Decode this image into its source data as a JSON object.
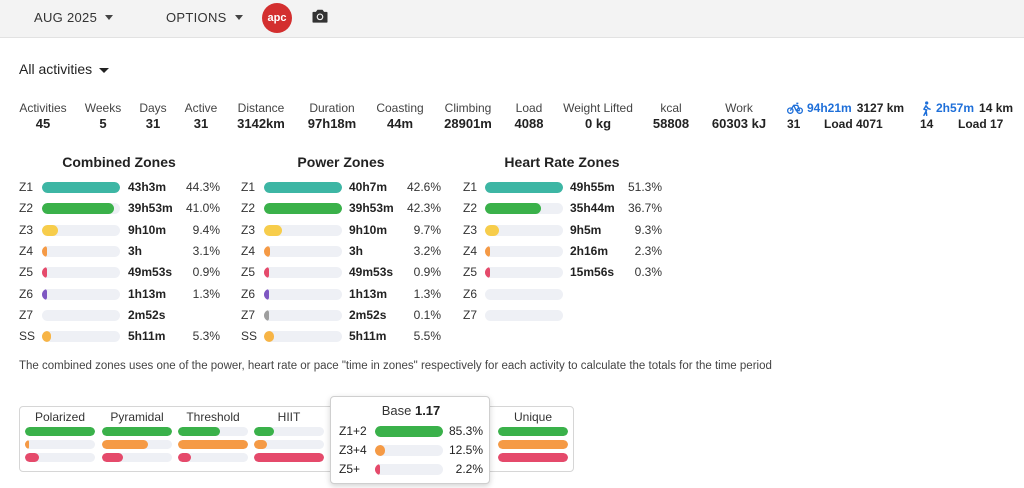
{
  "topbar": {
    "month_label": "AUG 2025",
    "options_label": "OPTIONS",
    "logo_text": "apc",
    "camera_icon": "camera-icon"
  },
  "filter": {
    "label": "All activities"
  },
  "stats": [
    {
      "label": "Activities",
      "value": "45"
    },
    {
      "label": "Weeks",
      "value": "5"
    },
    {
      "label": "Days",
      "value": "31"
    },
    {
      "label": "Active",
      "value": "31"
    },
    {
      "label": "Distance",
      "value": "3142km"
    },
    {
      "label": "Duration",
      "value": "97h18m"
    },
    {
      "label": "Coasting",
      "value": "44m"
    },
    {
      "label": "Climbing",
      "value": "28901m"
    },
    {
      "label": "Load",
      "value": "4088"
    },
    {
      "label": "Weight Lifted",
      "value": "0 kg"
    },
    {
      "label": "kcal",
      "value": "58808"
    },
    {
      "label": "Work",
      "value": "60303 kJ"
    }
  ],
  "sports": [
    {
      "icon": "bike-icon",
      "duration": "94h21m",
      "distance": "3127 km",
      "count": "31",
      "load": "Load 4071"
    },
    {
      "icon": "walk-icon",
      "duration": "2h57m",
      "distance": "14 km",
      "count": "14",
      "load": "Load 17"
    }
  ],
  "zone_colors": [
    "#3db6a4",
    "#3ab14a",
    "#f7cd4b",
    "#f59a45",
    "#e54a6b",
    "#7e57c2",
    "#9e9e9e",
    "#f7b445"
  ],
  "zones": {
    "combined": {
      "title": "Combined Zones",
      "rows": [
        {
          "zone": "Z1",
          "time": "43h3m",
          "pct": "44.3%",
          "fill": 1.0
        },
        {
          "zone": "Z2",
          "time": "39h53m",
          "pct": "41.0%",
          "fill": 0.925
        },
        {
          "zone": "Z3",
          "time": "9h10m",
          "pct": "9.4%",
          "fill": 0.21
        },
        {
          "zone": "Z4",
          "time": "3h",
          "pct": "3.1%",
          "fill": 0.07
        },
        {
          "zone": "Z5",
          "time": "49m53s",
          "pct": "0.9%",
          "fill": 0.02
        },
        {
          "zone": "Z6",
          "time": "1h13m",
          "pct": "1.3%",
          "fill": 0.03
        },
        {
          "zone": "Z7",
          "time": "2m52s",
          "pct": "",
          "fill": 0.0
        },
        {
          "zone": "SS",
          "time": "5h11m",
          "pct": "5.3%",
          "fill": 0.12
        }
      ]
    },
    "power": {
      "title": "Power Zones",
      "rows": [
        {
          "zone": "Z1",
          "time": "40h7m",
          "pct": "42.6%",
          "fill": 1.0
        },
        {
          "zone": "Z2",
          "time": "39h53m",
          "pct": "42.3%",
          "fill": 0.995
        },
        {
          "zone": "Z3",
          "time": "9h10m",
          "pct": "9.7%",
          "fill": 0.23
        },
        {
          "zone": "Z4",
          "time": "3h",
          "pct": "3.2%",
          "fill": 0.075
        },
        {
          "zone": "Z5",
          "time": "49m53s",
          "pct": "0.9%",
          "fill": 0.02
        },
        {
          "zone": "Z6",
          "time": "1h13m",
          "pct": "1.3%",
          "fill": 0.03
        },
        {
          "zone": "Z7",
          "time": "2m52s",
          "pct": "0.1%",
          "fill": 0.005
        },
        {
          "zone": "SS",
          "time": "5h11m",
          "pct": "5.5%",
          "fill": 0.13
        }
      ]
    },
    "heart": {
      "title": "Heart Rate Zones",
      "rows": [
        {
          "zone": "Z1",
          "time": "49h55m",
          "pct": "51.3%",
          "fill": 1.0
        },
        {
          "zone": "Z2",
          "time": "35h44m",
          "pct": "36.7%",
          "fill": 0.72
        },
        {
          "zone": "Z3",
          "time": "9h5m",
          "pct": "9.3%",
          "fill": 0.18
        },
        {
          "zone": "Z4",
          "time": "2h16m",
          "pct": "2.3%",
          "fill": 0.045
        },
        {
          "zone": "Z5",
          "time": "15m56s",
          "pct": "0.3%",
          "fill": 0.01
        },
        {
          "zone": "Z6",
          "time": "",
          "pct": "",
          "fill": 0.0
        },
        {
          "zone": "Z7",
          "time": "",
          "pct": "",
          "fill": 0.0
        }
      ]
    }
  },
  "note": "The combined zones uses one of the power, heart rate or pace \"time in zones\" respectively for each activity to calculate the totals for the time period",
  "distribution": {
    "colors": [
      "#3ab14a",
      "#f59a45",
      "#e54a6b"
    ],
    "columns": [
      {
        "label": "Polarized",
        "fills": [
          1.0,
          0.06,
          0.2
        ]
      },
      {
        "label": "Pyramidal",
        "fills": [
          1.0,
          0.65,
          0.3
        ]
      },
      {
        "label": "Threshold",
        "fills": [
          0.6,
          1.0,
          0.18
        ]
      },
      {
        "label": "HIIT",
        "fills": [
          0.28,
          0.18,
          1.0
        ]
      },
      {
        "label": "Unique",
        "fills": [
          1.0,
          1.0,
          1.0
        ]
      }
    ],
    "popup": {
      "title": "Base",
      "value": "1.17",
      "rows": [
        {
          "label": "Z1+2",
          "pct": "85.3%",
          "fill": 1.0
        },
        {
          "label": "Z3+4",
          "pct": "12.5%",
          "fill": 0.15
        },
        {
          "label": "Z5+",
          "pct": "2.2%",
          "fill": 0.03
        }
      ]
    }
  }
}
